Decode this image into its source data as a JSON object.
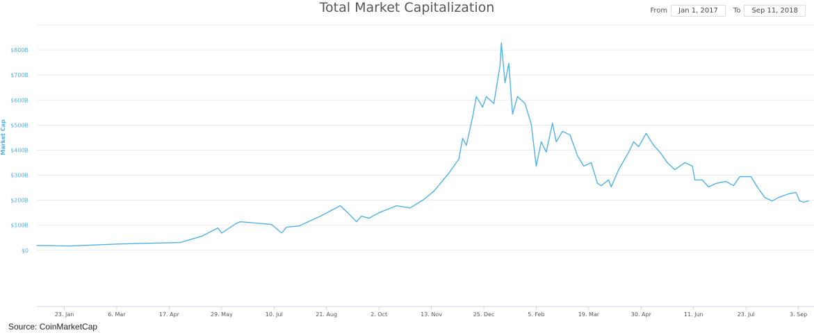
{
  "chart_data": {
    "type": "line",
    "title": "Total Market Capitalization",
    "ylabel": "Market Cap",
    "xlabel": "",
    "x_unit": "days since Jan 1, 2017",
    "ylim": [
      -225,
      900
    ],
    "xlim": [
      0,
      618
    ],
    "grid": true,
    "color": "#4fb1e8",
    "yticks": [
      {
        "v": 0,
        "label": "$0"
      },
      {
        "v": 100,
        "label": "$100B"
      },
      {
        "v": 200,
        "label": "$200B"
      },
      {
        "v": 300,
        "label": "$300B"
      },
      {
        "v": 400,
        "label": "$400B"
      },
      {
        "v": 500,
        "label": "$500B"
      },
      {
        "v": 600,
        "label": "$600B"
      },
      {
        "v": 700,
        "label": "$700B"
      },
      {
        "v": 800,
        "label": "$800B"
      },
      {
        "v": 900,
        "label": ""
      }
    ],
    "xticks": [
      {
        "d": 22,
        "label": "23. Jan"
      },
      {
        "d": 64,
        "label": "6. Mar"
      },
      {
        "d": 106,
        "label": "17. Apr"
      },
      {
        "d": 148,
        "label": "29. May"
      },
      {
        "d": 190,
        "label": "10. Jul"
      },
      {
        "d": 232,
        "label": "21. Aug"
      },
      {
        "d": 274,
        "label": "2. Oct"
      },
      {
        "d": 316,
        "label": "13. Nov"
      },
      {
        "d": 358,
        "label": "25. Dec"
      },
      {
        "d": 400,
        "label": "5. Feb"
      },
      {
        "d": 442,
        "label": "19. Mar"
      },
      {
        "d": 484,
        "label": "30. Apr"
      },
      {
        "d": 526,
        "label": "11. Jun"
      },
      {
        "d": 568,
        "label": "23. Jul"
      },
      {
        "d": 610,
        "label": "3. Sep"
      }
    ],
    "series": [
      {
        "name": "Market Cap (B USD)",
        "points": [
          [
            0,
            19
          ],
          [
            26,
            17
          ],
          [
            65,
            25
          ],
          [
            115,
            31
          ],
          [
            132,
            56
          ],
          [
            145,
            89
          ],
          [
            148,
            69
          ],
          [
            160,
            108
          ],
          [
            163,
            114
          ],
          [
            188,
            103
          ],
          [
            196,
            69
          ],
          [
            200,
            92
          ],
          [
            210,
            97
          ],
          [
            227,
            136
          ],
          [
            243,
            178
          ],
          [
            249,
            150
          ],
          [
            256,
            114
          ],
          [
            260,
            136
          ],
          [
            266,
            128
          ],
          [
            274,
            150
          ],
          [
            288,
            178
          ],
          [
            299,
            169
          ],
          [
            310,
            203
          ],
          [
            318,
            236
          ],
          [
            330,
            308
          ],
          [
            338,
            364
          ],
          [
            341,
            447
          ],
          [
            344,
            419
          ],
          [
            349,
            531
          ],
          [
            352,
            614
          ],
          [
            357,
            572
          ],
          [
            360,
            614
          ],
          [
            366,
            586
          ],
          [
            371,
            739
          ],
          [
            372,
            828
          ],
          [
            375,
            669
          ],
          [
            378,
            747
          ],
          [
            381,
            544
          ],
          [
            385,
            614
          ],
          [
            391,
            586
          ],
          [
            396,
            503
          ],
          [
            400,
            336
          ],
          [
            404,
            433
          ],
          [
            408,
            392
          ],
          [
            413,
            508
          ],
          [
            416,
            433
          ],
          [
            421,
            475
          ],
          [
            427,
            461
          ],
          [
            433,
            378
          ],
          [
            438,
            336
          ],
          [
            444,
            350
          ],
          [
            449,
            267
          ],
          [
            452,
            258
          ],
          [
            458,
            281
          ],
          [
            460,
            253
          ],
          [
            466,
            322
          ],
          [
            474,
            392
          ],
          [
            478,
            433
          ],
          [
            482,
            414
          ],
          [
            488,
            467
          ],
          [
            494,
            419
          ],
          [
            499,
            392
          ],
          [
            505,
            350
          ],
          [
            511,
            322
          ],
          [
            519,
            350
          ],
          [
            525,
            336
          ],
          [
            527,
            281
          ],
          [
            533,
            281
          ],
          [
            538,
            253
          ],
          [
            544,
            267
          ],
          [
            552,
            275
          ],
          [
            558,
            258
          ],
          [
            563,
            294
          ],
          [
            572,
            294
          ],
          [
            577,
            253
          ],
          [
            583,
            211
          ],
          [
            589,
            197
          ],
          [
            594,
            211
          ],
          [
            602,
            225
          ],
          [
            608,
            231
          ],
          [
            611,
            197
          ],
          [
            614,
            192
          ],
          [
            618,
            197
          ]
        ]
      }
    ]
  },
  "range": {
    "from_label": "From",
    "from_value": "Jan 1, 2017",
    "to_label": "To",
    "to_value": "Sep 11, 2018"
  },
  "source": "Source: CoinMarketCap"
}
